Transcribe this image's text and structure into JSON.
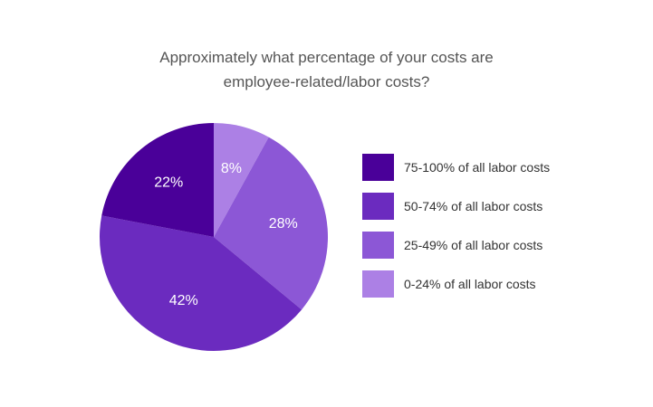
{
  "title_lines": [
    "Approximately what percentage of your costs are",
    "employee-related/labor costs?"
  ],
  "chart_data": {
    "type": "pie",
    "title": "Approximately what percentage of your costs are employee-related/labor costs?",
    "categories": [
      "75-100% of all labor costs",
      "50-74% of all labor costs",
      "25-49% of all labor costs",
      "0-24% of all labor costs"
    ],
    "values": [
      22,
      42,
      28,
      8
    ],
    "value_labels": [
      "22%",
      "42%",
      "28%",
      "8%"
    ],
    "colors": [
      "#4a0099",
      "#6b2bbf",
      "#8c57d6",
      "#ac80e5"
    ],
    "label_color": "#ffffff",
    "legend_position": "right"
  }
}
